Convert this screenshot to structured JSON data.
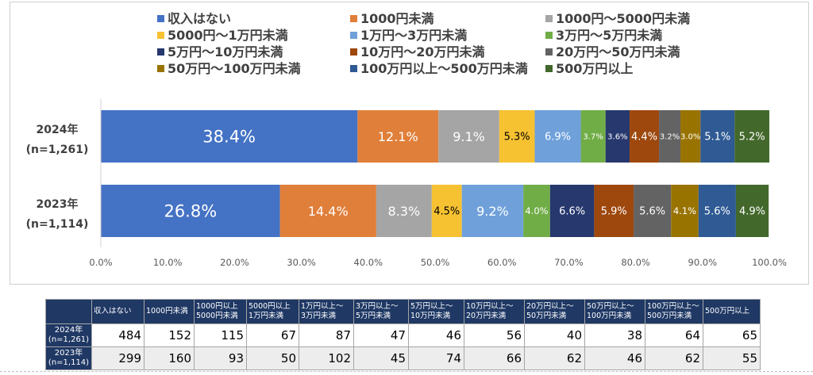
{
  "chart_data": {
    "type": "bar",
    "orientation": "horizontal",
    "stacked": true,
    "percent_stacked": true,
    "categories": [
      "2024年\n(n=1,261)",
      "2023年\n(n=1,114)"
    ],
    "series": [
      {
        "name": "収入はない",
        "color": "#4472c4",
        "values": [
          38.4,
          26.8
        ],
        "labels": [
          "38.4%",
          "26.8%"
        ]
      },
      {
        "name": "1000円未満",
        "color": "#e07f3a",
        "values": [
          12.1,
          14.4
        ],
        "labels": [
          "12.1%",
          "14.4%"
        ]
      },
      {
        "name": "1000円〜5000円未満",
        "color": "#a5a5a5",
        "values": [
          9.1,
          8.3
        ],
        "labels": [
          "9.1%",
          "8.3%"
        ]
      },
      {
        "name": "5000円〜1万円未満",
        "color": "#f6c232",
        "values": [
          5.3,
          4.5
        ],
        "labels": [
          "5.3%",
          "4.5%"
        ]
      },
      {
        "name": "1万円〜3万円未満",
        "color": "#6fa0da",
        "values": [
          6.9,
          9.2
        ],
        "labels": [
          "6.9%",
          "9.2%"
        ]
      },
      {
        "name": "3万円〜5万円未満",
        "color": "#70ad47",
        "values": [
          3.7,
          4.0
        ],
        "labels": [
          "3.7%",
          "4.0%"
        ]
      },
      {
        "name": "5万円〜10万円未満",
        "color": "#26386e",
        "values": [
          3.6,
          6.6
        ],
        "labels": [
          "3.6%",
          "6.6%"
        ]
      },
      {
        "name": "10万円〜20万円未満",
        "color": "#9e480e",
        "values": [
          4.4,
          5.9
        ],
        "labels": [
          "4.4%",
          "5.9%"
        ]
      },
      {
        "name": "20万円〜50万円未満",
        "color": "#636363",
        "values": [
          3.2,
          5.6
        ],
        "labels": [
          "3.2%",
          "5.6%"
        ]
      },
      {
        "name": "50万円〜100万円未満",
        "color": "#997300",
        "values": [
          3.0,
          4.1
        ],
        "labels": [
          "3.0%",
          "4.1%"
        ]
      },
      {
        "name": "100万円以上〜500万円未満",
        "color": "#2f5a94",
        "values": [
          5.1,
          5.6
        ],
        "labels": [
          "5.1%",
          "5.6%"
        ]
      },
      {
        "name": "500万円以上",
        "color": "#43682b",
        "values": [
          5.2,
          4.9
        ],
        "labels": [
          "5.2%",
          "4.9%"
        ]
      }
    ],
    "xlim": [
      0,
      100
    ],
    "x_ticks": [
      "0.0%",
      "10.0%",
      "20.0%",
      "30.0%",
      "40.0%",
      "50.0%",
      "60.0%",
      "70.0%",
      "80.0%",
      "90.0%",
      "100.0%"
    ],
    "legend_position": "top",
    "title": "",
    "xlabel": "",
    "ylabel": ""
  },
  "table": {
    "headers": [
      "",
      "収入はない",
      "1000円未満",
      "1000円以上\n5000円未満",
      "5000円以上\n1万円未満",
      "1万円以上〜\n3万円未満",
      "3万円以上〜\n5万円未満",
      "5万円以上〜\n10万円未満",
      "10万円以上〜\n20万円未満",
      "20万円以上〜\n50万円未満",
      "50万円以上〜\n100万円未満",
      "100万円以上〜\n500万円未満",
      "500万円以上"
    ],
    "rows": [
      {
        "label": "2024年\n(n=1,261)",
        "values": [
          "484",
          "152",
          "115",
          "67",
          "87",
          "47",
          "46",
          "56",
          "40",
          "38",
          "64",
          "65"
        ]
      },
      {
        "label": "2023年\n(n=1,114)",
        "values": [
          "299",
          "160",
          "93",
          "50",
          "102",
          "45",
          "74",
          "66",
          "62",
          "46",
          "62",
          "55"
        ]
      }
    ]
  }
}
